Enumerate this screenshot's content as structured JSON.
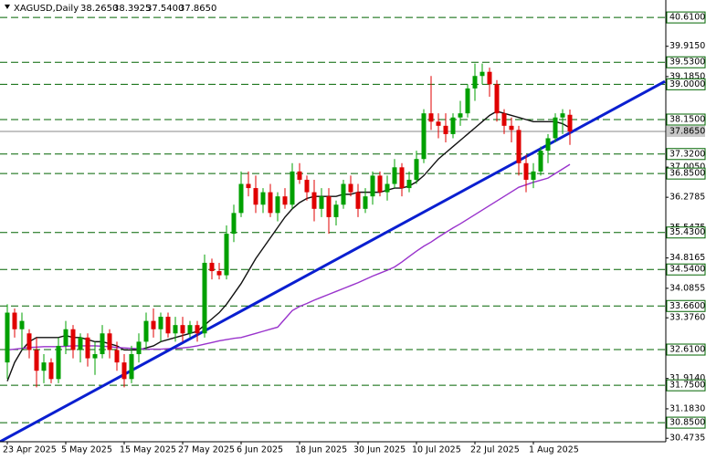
{
  "chart_data": {
    "type": "candlestick",
    "symbol": "XAGUSD,Daily",
    "ohlc_info": [
      "38.2650",
      "38.3925",
      "37.5400",
      "37.8650"
    ],
    "categories": [
      "23 Apr 2025",
      null,
      null,
      null,
      null,
      null,
      null,
      null,
      "5 May 2025",
      null,
      null,
      null,
      null,
      null,
      null,
      null,
      "15 May 2025",
      null,
      null,
      null,
      null,
      null,
      null,
      null,
      "27 May 2025",
      null,
      null,
      null,
      null,
      null,
      null,
      null,
      "6 Jun 2025",
      null,
      null,
      null,
      null,
      null,
      null,
      null,
      "18 Jun 2025",
      null,
      null,
      null,
      null,
      null,
      null,
      null,
      "30 Jun 2025",
      null,
      null,
      null,
      null,
      null,
      null,
      null,
      "10 Jul 2025",
      null,
      null,
      null,
      null,
      null,
      null,
      null,
      "22 Jul 2025",
      null,
      null,
      null,
      null,
      null,
      null,
      null,
      "1 Aug 2025",
      null,
      null,
      null,
      null,
      null
    ],
    "open": [
      32.3,
      33.5,
      33.1,
      33.0,
      32.6,
      32.1,
      32.3,
      31.9,
      32.7,
      33.1,
      32.6,
      32.9,
      32.4,
      32.5,
      33.0,
      32.6,
      32.3,
      31.9,
      32.5,
      32.8,
      33.3,
      33.1,
      33.4,
      33.0,
      33.2,
      33.0,
      33.2,
      33.0,
      34.7,
      34.5,
      34.4,
      35.4,
      35.9,
      36.6,
      36.5,
      36.1,
      36.4,
      35.9,
      36.3,
      36.1,
      36.9,
      36.7,
      36.4,
      36.0,
      36.3,
      35.8,
      36.1,
      36.6,
      36.4,
      36.0,
      36.3,
      36.8,
      36.4,
      36.6,
      37.0,
      36.5,
      36.7,
      37.2,
      38.3,
      38.1,
      38.0,
      37.8,
      38.2,
      38.3,
      38.9,
      39.2,
      39.3,
      39.0,
      38.3,
      38.0,
      37.9,
      37.1,
      36.7,
      36.9,
      37.4,
      37.7,
      38.2,
      38.265
    ],
    "high": [
      33.7,
      33.6,
      33.5,
      33.1,
      32.9,
      32.5,
      32.4,
      32.9,
      33.3,
      33.2,
      33.0,
      33.0,
      32.8,
      33.2,
      33.1,
      32.8,
      32.5,
      32.7,
      33.0,
      33.5,
      33.6,
      33.5,
      33.5,
      33.4,
      33.4,
      33.3,
      33.3,
      34.9,
      34.8,
      34.7,
      35.6,
      36.1,
      36.9,
      36.9,
      36.8,
      36.5,
      36.6,
      36.4,
      36.5,
      37.1,
      37.1,
      36.8,
      36.7,
      36.5,
      36.5,
      36.2,
      36.7,
      36.8,
      36.6,
      36.5,
      36.9,
      36.9,
      36.8,
      37.2,
      37.1,
      36.9,
      37.4,
      38.4,
      39.2,
      38.3,
      38.3,
      38.3,
      38.6,
      39.0,
      39.5,
      39.5,
      39.4,
      39.1,
      38.4,
      38.2,
      38.0,
      37.3,
      37.1,
      37.5,
      37.8,
      38.3,
      38.4,
      38.3925
    ],
    "low": [
      31.9,
      32.9,
      32.6,
      32.4,
      31.7,
      31.8,
      31.8,
      31.8,
      32.5,
      32.4,
      32.3,
      32.2,
      32.0,
      32.4,
      32.4,
      32.1,
      31.7,
      31.8,
      32.3,
      32.6,
      32.9,
      32.8,
      32.9,
      32.8,
      32.8,
      32.9,
      32.8,
      32.9,
      34.3,
      34.3,
      34.3,
      35.2,
      35.8,
      36.3,
      35.9,
      35.9,
      35.8,
      35.7,
      36.0,
      36.0,
      36.6,
      36.2,
      35.7,
      35.8,
      35.4,
      35.6,
      36.0,
      36.3,
      35.8,
      35.9,
      36.1,
      36.3,
      36.2,
      36.5,
      36.3,
      36.4,
      36.6,
      37.1,
      37.9,
      37.7,
      37.6,
      37.7,
      38.0,
      38.2,
      38.6,
      39.0,
      38.7,
      38.1,
      37.8,
      37.6,
      36.8,
      36.4,
      36.5,
      36.8,
      37.1,
      37.6,
      37.8,
      37.54
    ],
    "close": [
      33.5,
      33.1,
      33.3,
      32.6,
      32.1,
      32.3,
      31.9,
      32.7,
      33.1,
      32.6,
      32.9,
      32.4,
      32.5,
      33.0,
      32.6,
      32.3,
      31.9,
      32.5,
      32.8,
      33.3,
      33.1,
      33.4,
      33.0,
      33.2,
      33.0,
      33.2,
      33.0,
      34.7,
      34.5,
      34.4,
      35.4,
      35.9,
      36.6,
      36.5,
      36.1,
      36.4,
      35.9,
      36.3,
      36.1,
      36.9,
      36.7,
      36.4,
      36.0,
      36.3,
      35.8,
      36.1,
      36.6,
      36.4,
      36.0,
      36.3,
      36.8,
      36.4,
      36.6,
      37.0,
      36.5,
      36.7,
      37.2,
      38.3,
      38.1,
      38.0,
      37.8,
      38.2,
      38.3,
      38.9,
      39.2,
      39.3,
      39.0,
      38.3,
      38.0,
      37.9,
      37.1,
      36.7,
      36.9,
      37.4,
      37.7,
      38.2,
      38.3,
      37.865
    ],
    "up_color": "#00a000",
    "down_color": "#e00000",
    "ylim": [
      30.39,
      41.03
    ],
    "yticks": [
      {
        "value": 39.915,
        "label": "39.9150"
      },
      {
        "value": 39.185,
        "label": "39.1850"
      },
      {
        "value": 37.005,
        "label": "37.0050"
      },
      {
        "value": 36.2785,
        "label": "36.2785"
      },
      {
        "value": 35.5475,
        "label": "35.5475"
      },
      {
        "value": 34.8165,
        "label": "34.8165"
      },
      {
        "value": 34.0855,
        "label": "34.0855"
      },
      {
        "value": 33.376,
        "label": "33.3760"
      },
      {
        "value": 31.914,
        "label": "31.9140"
      },
      {
        "value": 31.183,
        "label": "31.1830"
      },
      {
        "value": 30.4735,
        "label": "30.4735"
      }
    ],
    "levels": {
      "color": "#006400",
      "values": [
        {
          "value": 40.61,
          "label": "40.6100"
        },
        {
          "value": 39.53,
          "label": "39.5300"
        },
        {
          "value": 39.0,
          "label": "39.0000"
        },
        {
          "value": 38.15,
          "label": "38.1500"
        },
        {
          "value": 37.32,
          "label": "37.3200"
        },
        {
          "value": 36.85,
          "label": "36.8500"
        },
        {
          "value": 35.43,
          "label": "35.4300"
        },
        {
          "value": 34.54,
          "label": "34.5400"
        },
        {
          "value": 33.66,
          "label": "33.6600"
        },
        {
          "value": 32.61,
          "label": "32.6100"
        },
        {
          "value": 31.75,
          "label": "31.7500"
        },
        {
          "value": 30.85,
          "label": "30.8500"
        }
      ]
    },
    "last_price": {
      "value": 37.865,
      "label": "37.8650"
    },
    "indicators": [
      {
        "color": "#111111",
        "values": [
          31.85,
          32.3,
          32.6,
          32.8,
          32.9,
          32.9,
          32.9,
          32.9,
          32.95,
          32.9,
          32.9,
          32.85,
          32.8,
          32.8,
          32.75,
          32.7,
          32.6,
          32.6,
          32.6,
          32.65,
          32.7,
          32.8,
          32.85,
          32.9,
          32.95,
          33.0,
          33.05,
          33.2,
          33.35,
          33.5,
          33.7,
          33.95,
          34.2,
          34.5,
          34.8,
          35.05,
          35.3,
          35.55,
          35.8,
          36.0,
          36.15,
          36.25,
          36.3,
          36.3,
          36.3,
          36.3,
          36.35,
          36.35,
          36.4,
          36.4,
          36.4,
          36.4,
          36.45,
          36.5,
          36.5,
          36.55,
          36.65,
          36.8,
          37.0,
          37.2,
          37.35,
          37.5,
          37.65,
          37.8,
          37.95,
          38.1,
          38.25,
          38.35,
          38.3,
          38.25,
          38.2,
          38.15,
          38.1,
          38.1,
          38.1,
          38.1,
          38.05,
          37.95
        ]
      },
      {
        "color": "#9933cc",
        "values": [
          32.6,
          32.62,
          32.64,
          32.66,
          32.67,
          32.68,
          32.68,
          32.68,
          32.69,
          32.7,
          32.7,
          32.7,
          32.7,
          32.69,
          32.68,
          32.66,
          32.65,
          32.64,
          32.63,
          32.62,
          32.62,
          32.62,
          32.63,
          32.64,
          32.65,
          32.67,
          32.7,
          32.74,
          32.78,
          32.82,
          32.85,
          32.88,
          32.9,
          32.95,
          33.0,
          33.05,
          33.1,
          33.15,
          33.35,
          33.55,
          33.65,
          33.72,
          33.8,
          33.87,
          33.94,
          34.01,
          34.08,
          34.15,
          34.22,
          34.3,
          34.38,
          34.45,
          34.52,
          34.6,
          34.72,
          34.85,
          34.98,
          35.1,
          35.2,
          35.32,
          35.43,
          35.54,
          35.64,
          35.75,
          35.86,
          35.97,
          36.08,
          36.19,
          36.3,
          36.41,
          36.52,
          36.58,
          36.64,
          36.69,
          36.74,
          36.85,
          36.96,
          37.07
        ]
      }
    ],
    "trendline": {
      "color": "#0a1fd0",
      "x": [
        -1,
        90
      ],
      "values": [
        30.39,
        39.07
      ]
    }
  }
}
